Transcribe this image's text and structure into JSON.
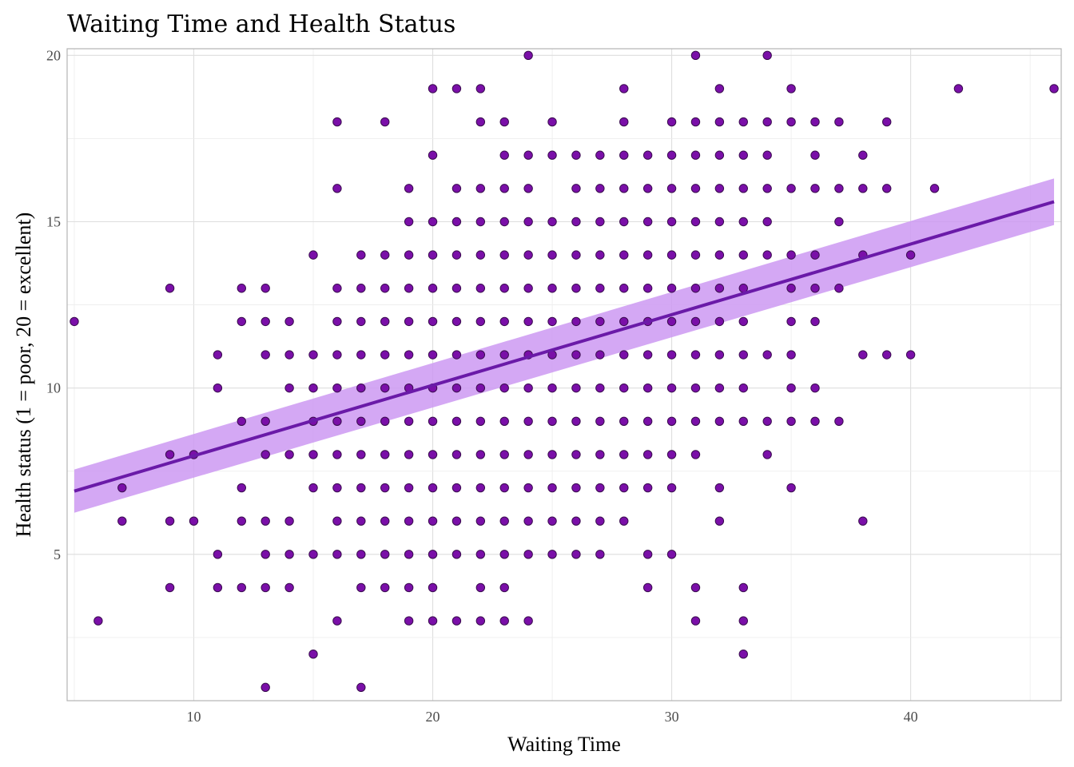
{
  "chart_data": {
    "type": "scatter",
    "title": "Waiting Time and Health Status",
    "xlabel": "Waiting Time",
    "ylabel": "Health status (1 = poor, 20 = excellent)",
    "xlim": [
      4.7,
      46.3
    ],
    "ylim": [
      0.6,
      20.2
    ],
    "x_ticks": [
      10,
      20,
      30,
      40
    ],
    "y_ticks": [
      5,
      10,
      15,
      20
    ],
    "grid": true,
    "colors": {
      "points": "#7a0fa8",
      "fit_line": "#6a1aa8",
      "ci_band": "#cc99f2"
    },
    "fit": {
      "x": [
        5,
        46
      ],
      "y": [
        6.9,
        15.6
      ],
      "ci_lower": [
        6.25,
        14.9
      ],
      "ci_upper": [
        7.55,
        16.3
      ]
    },
    "points": [
      [
        5,
        12
      ],
      [
        6,
        3
      ],
      [
        7,
        7
      ],
      [
        7,
        6
      ],
      [
        9,
        13
      ],
      [
        9,
        8
      ],
      [
        9,
        6
      ],
      [
        9,
        4
      ],
      [
        10,
        8
      ],
      [
        10,
        6
      ],
      [
        11,
        11
      ],
      [
        11,
        10
      ],
      [
        11,
        5
      ],
      [
        11,
        4
      ],
      [
        12,
        13
      ],
      [
        12,
        12
      ],
      [
        12,
        9
      ],
      [
        12,
        7
      ],
      [
        12,
        6
      ],
      [
        12,
        4
      ],
      [
        13,
        13
      ],
      [
        13,
        12
      ],
      [
        13,
        11
      ],
      [
        13,
        9
      ],
      [
        13,
        8
      ],
      [
        13,
        6
      ],
      [
        13,
        5
      ],
      [
        13,
        4
      ],
      [
        13,
        1
      ],
      [
        14,
        12
      ],
      [
        14,
        11
      ],
      [
        14,
        10
      ],
      [
        14,
        8
      ],
      [
        14,
        6
      ],
      [
        14,
        5
      ],
      [
        14,
        4
      ],
      [
        15,
        14
      ],
      [
        15,
        11
      ],
      [
        15,
        10
      ],
      [
        15,
        9
      ],
      [
        15,
        8
      ],
      [
        15,
        7
      ],
      [
        15,
        5
      ],
      [
        15,
        2
      ],
      [
        16,
        18
      ],
      [
        16,
        16
      ],
      [
        16,
        13
      ],
      [
        16,
        12
      ],
      [
        16,
        11
      ],
      [
        16,
        10
      ],
      [
        16,
        9
      ],
      [
        16,
        8
      ],
      [
        16,
        7
      ],
      [
        16,
        6
      ],
      [
        16,
        5
      ],
      [
        16,
        3
      ],
      [
        17,
        14
      ],
      [
        17,
        13
      ],
      [
        17,
        12
      ],
      [
        17,
        11
      ],
      [
        17,
        10
      ],
      [
        17,
        9
      ],
      [
        17,
        8
      ],
      [
        17,
        7
      ],
      [
        17,
        6
      ],
      [
        17,
        5
      ],
      [
        17,
        4
      ],
      [
        17,
        1
      ],
      [
        18,
        18
      ],
      [
        18,
        14
      ],
      [
        18,
        13
      ],
      [
        18,
        12
      ],
      [
        18,
        11
      ],
      [
        18,
        10
      ],
      [
        18,
        9
      ],
      [
        18,
        8
      ],
      [
        18,
        7
      ],
      [
        18,
        6
      ],
      [
        18,
        5
      ],
      [
        18,
        4
      ],
      [
        19,
        16
      ],
      [
        19,
        15
      ],
      [
        19,
        14
      ],
      [
        19,
        13
      ],
      [
        19,
        12
      ],
      [
        19,
        11
      ],
      [
        19,
        10
      ],
      [
        19,
        9
      ],
      [
        19,
        8
      ],
      [
        19,
        7
      ],
      [
        19,
        6
      ],
      [
        19,
        5
      ],
      [
        19,
        4
      ],
      [
        19,
        3
      ],
      [
        20,
        19
      ],
      [
        20,
        17
      ],
      [
        20,
        15
      ],
      [
        20,
        14
      ],
      [
        20,
        13
      ],
      [
        20,
        12
      ],
      [
        20,
        11
      ],
      [
        20,
        10
      ],
      [
        20,
        9
      ],
      [
        20,
        8
      ],
      [
        20,
        7
      ],
      [
        20,
        6
      ],
      [
        20,
        5
      ],
      [
        20,
        4
      ],
      [
        20,
        3
      ],
      [
        21,
        19
      ],
      [
        21,
        16
      ],
      [
        21,
        15
      ],
      [
        21,
        14
      ],
      [
        21,
        13
      ],
      [
        21,
        12
      ],
      [
        21,
        11
      ],
      [
        21,
        10
      ],
      [
        21,
        9
      ],
      [
        21,
        8
      ],
      [
        21,
        7
      ],
      [
        21,
        6
      ],
      [
        21,
        5
      ],
      [
        21,
        3
      ],
      [
        22,
        19
      ],
      [
        22,
        18
      ],
      [
        22,
        16
      ],
      [
        22,
        15
      ],
      [
        22,
        14
      ],
      [
        22,
        13
      ],
      [
        22,
        12
      ],
      [
        22,
        11
      ],
      [
        22,
        10
      ],
      [
        22,
        9
      ],
      [
        22,
        8
      ],
      [
        22,
        7
      ],
      [
        22,
        6
      ],
      [
        22,
        5
      ],
      [
        22,
        4
      ],
      [
        22,
        3
      ],
      [
        23,
        18
      ],
      [
        23,
        17
      ],
      [
        23,
        16
      ],
      [
        23,
        15
      ],
      [
        23,
        14
      ],
      [
        23,
        13
      ],
      [
        23,
        12
      ],
      [
        23,
        11
      ],
      [
        23,
        10
      ],
      [
        23,
        9
      ],
      [
        23,
        8
      ],
      [
        23,
        7
      ],
      [
        23,
        6
      ],
      [
        23,
        5
      ],
      [
        23,
        4
      ],
      [
        23,
        3
      ],
      [
        24,
        20
      ],
      [
        24,
        17
      ],
      [
        24,
        16
      ],
      [
        24,
        15
      ],
      [
        24,
        14
      ],
      [
        24,
        13
      ],
      [
        24,
        12
      ],
      [
        24,
        11
      ],
      [
        24,
        10
      ],
      [
        24,
        9
      ],
      [
        24,
        8
      ],
      [
        24,
        7
      ],
      [
        24,
        6
      ],
      [
        24,
        5
      ],
      [
        24,
        3
      ],
      [
        25,
        18
      ],
      [
        25,
        17
      ],
      [
        25,
        15
      ],
      [
        25,
        14
      ],
      [
        25,
        13
      ],
      [
        25,
        12
      ],
      [
        25,
        11
      ],
      [
        25,
        10
      ],
      [
        25,
        9
      ],
      [
        25,
        8
      ],
      [
        25,
        7
      ],
      [
        25,
        6
      ],
      [
        25,
        5
      ],
      [
        26,
        17
      ],
      [
        26,
        16
      ],
      [
        26,
        15
      ],
      [
        26,
        14
      ],
      [
        26,
        13
      ],
      [
        26,
        12
      ],
      [
        26,
        11
      ],
      [
        26,
        10
      ],
      [
        26,
        9
      ],
      [
        26,
        8
      ],
      [
        26,
        7
      ],
      [
        26,
        6
      ],
      [
        26,
        5
      ],
      [
        27,
        17
      ],
      [
        27,
        16
      ],
      [
        27,
        15
      ],
      [
        27,
        14
      ],
      [
        27,
        13
      ],
      [
        27,
        12
      ],
      [
        27,
        11
      ],
      [
        27,
        10
      ],
      [
        27,
        9
      ],
      [
        27,
        8
      ],
      [
        27,
        7
      ],
      [
        27,
        6
      ],
      [
        27,
        5
      ],
      [
        28,
        19
      ],
      [
        28,
        18
      ],
      [
        28,
        17
      ],
      [
        28,
        16
      ],
      [
        28,
        15
      ],
      [
        28,
        14
      ],
      [
        28,
        13
      ],
      [
        28,
        12
      ],
      [
        28,
        11
      ],
      [
        28,
        10
      ],
      [
        28,
        9
      ],
      [
        28,
        8
      ],
      [
        28,
        7
      ],
      [
        28,
        6
      ],
      [
        29,
        17
      ],
      [
        29,
        16
      ],
      [
        29,
        15
      ],
      [
        29,
        14
      ],
      [
        29,
        13
      ],
      [
        29,
        12
      ],
      [
        29,
        11
      ],
      [
        29,
        10
      ],
      [
        29,
        9
      ],
      [
        29,
        8
      ],
      [
        29,
        7
      ],
      [
        29,
        5
      ],
      [
        29,
        4
      ],
      [
        30,
        18
      ],
      [
        30,
        17
      ],
      [
        30,
        16
      ],
      [
        30,
        15
      ],
      [
        30,
        14
      ],
      [
        30,
        13
      ],
      [
        30,
        12
      ],
      [
        30,
        11
      ],
      [
        30,
        10
      ],
      [
        30,
        9
      ],
      [
        30,
        8
      ],
      [
        30,
        7
      ],
      [
        30,
        5
      ],
      [
        31,
        20
      ],
      [
        31,
        18
      ],
      [
        31,
        17
      ],
      [
        31,
        16
      ],
      [
        31,
        15
      ],
      [
        31,
        14
      ],
      [
        31,
        13
      ],
      [
        31,
        12
      ],
      [
        31,
        11
      ],
      [
        31,
        10
      ],
      [
        31,
        9
      ],
      [
        31,
        8
      ],
      [
        31,
        4
      ],
      [
        31,
        3
      ],
      [
        32,
        19
      ],
      [
        32,
        18
      ],
      [
        32,
        17
      ],
      [
        32,
        16
      ],
      [
        32,
        15
      ],
      [
        32,
        14
      ],
      [
        32,
        13
      ],
      [
        32,
        12
      ],
      [
        32,
        11
      ],
      [
        32,
        10
      ],
      [
        32,
        9
      ],
      [
        32,
        7
      ],
      [
        32,
        6
      ],
      [
        33,
        18
      ],
      [
        33,
        17
      ],
      [
        33,
        16
      ],
      [
        33,
        15
      ],
      [
        33,
        14
      ],
      [
        33,
        13
      ],
      [
        33,
        12
      ],
      [
        33,
        11
      ],
      [
        33,
        10
      ],
      [
        33,
        9
      ],
      [
        33,
        4
      ],
      [
        33,
        3
      ],
      [
        33,
        2
      ],
      [
        34,
        20
      ],
      [
        34,
        18
      ],
      [
        34,
        17
      ],
      [
        34,
        16
      ],
      [
        34,
        15
      ],
      [
        34,
        14
      ],
      [
        34,
        11
      ],
      [
        34,
        9
      ],
      [
        34,
        8
      ],
      [
        35,
        19
      ],
      [
        35,
        18
      ],
      [
        35,
        16
      ],
      [
        35,
        14
      ],
      [
        35,
        13
      ],
      [
        35,
        12
      ],
      [
        35,
        11
      ],
      [
        35,
        10
      ],
      [
        35,
        9
      ],
      [
        35,
        7
      ],
      [
        36,
        18
      ],
      [
        36,
        17
      ],
      [
        36,
        16
      ],
      [
        36,
        14
      ],
      [
        36,
        13
      ],
      [
        36,
        12
      ],
      [
        36,
        10
      ],
      [
        36,
        9
      ],
      [
        37,
        18
      ],
      [
        37,
        16
      ],
      [
        37,
        15
      ],
      [
        37,
        13
      ],
      [
        37,
        9
      ],
      [
        38,
        17
      ],
      [
        38,
        16
      ],
      [
        38,
        14
      ],
      [
        38,
        11
      ],
      [
        38,
        6
      ],
      [
        39,
        18
      ],
      [
        39,
        16
      ],
      [
        39,
        11
      ],
      [
        40,
        14
      ],
      [
        40,
        11
      ],
      [
        41,
        16
      ],
      [
        42,
        19
      ],
      [
        46,
        19
      ]
    ]
  }
}
